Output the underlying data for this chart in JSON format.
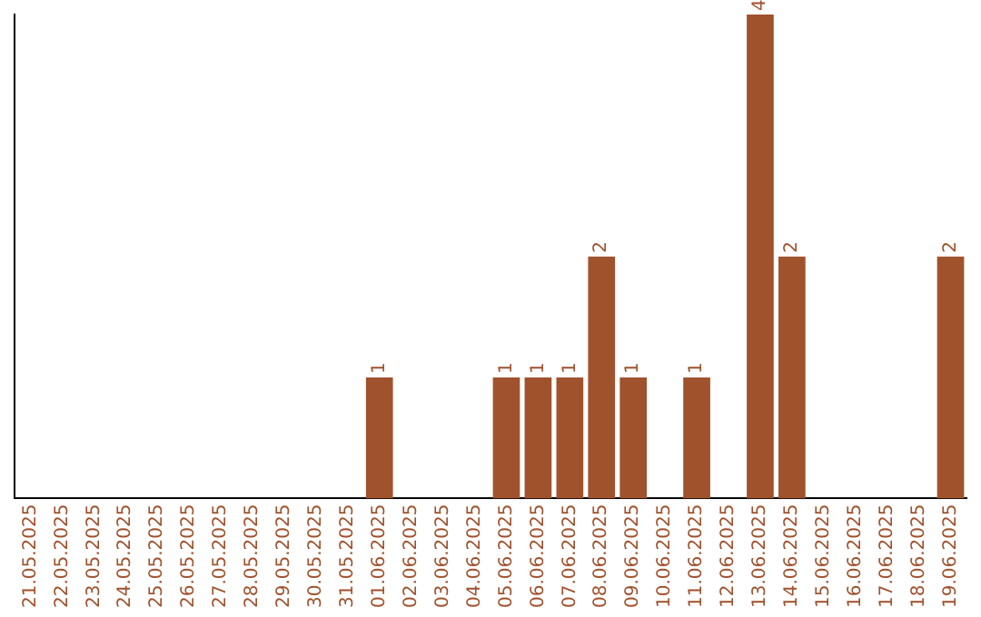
{
  "chart_data": {
    "type": "bar",
    "categories": [
      "21.05.2025",
      "22.05.2025",
      "23.05.2025",
      "24.05.2025",
      "25.05.2025",
      "26.05.2025",
      "27.05.2025",
      "28.05.2025",
      "29.05.2025",
      "30.05.2025",
      "31.05.2025",
      "01.06.2025",
      "02.06.2025",
      "03.06.2025",
      "04.06.2025",
      "05.06.2025",
      "06.06.2025",
      "07.06.2025",
      "08.06.2025",
      "09.06.2025",
      "10.06.2025",
      "11.06.2025",
      "12.06.2025",
      "13.06.2025",
      "14.06.2025",
      "15.06.2025",
      "16.06.2025",
      "17.06.2025",
      "18.06.2025",
      "19.06.2025"
    ],
    "values": [
      0,
      0,
      0,
      0,
      0,
      0,
      0,
      0,
      0,
      0,
      0,
      1,
      0,
      0,
      0,
      1,
      1,
      1,
      2,
      1,
      0,
      1,
      0,
      4,
      2,
      0,
      0,
      0,
      0,
      2
    ],
    "value_labels": [
      null,
      null,
      null,
      null,
      null,
      null,
      null,
      null,
      null,
      null,
      null,
      "1",
      null,
      null,
      null,
      "1",
      "1",
      "1",
      "2",
      "1",
      null,
      "1",
      null,
      "4",
      "2",
      null,
      null,
      null,
      null,
      "2"
    ],
    "color": "#a0522d",
    "grid": false,
    "legend": false,
    "tick_labels": "x"
  }
}
